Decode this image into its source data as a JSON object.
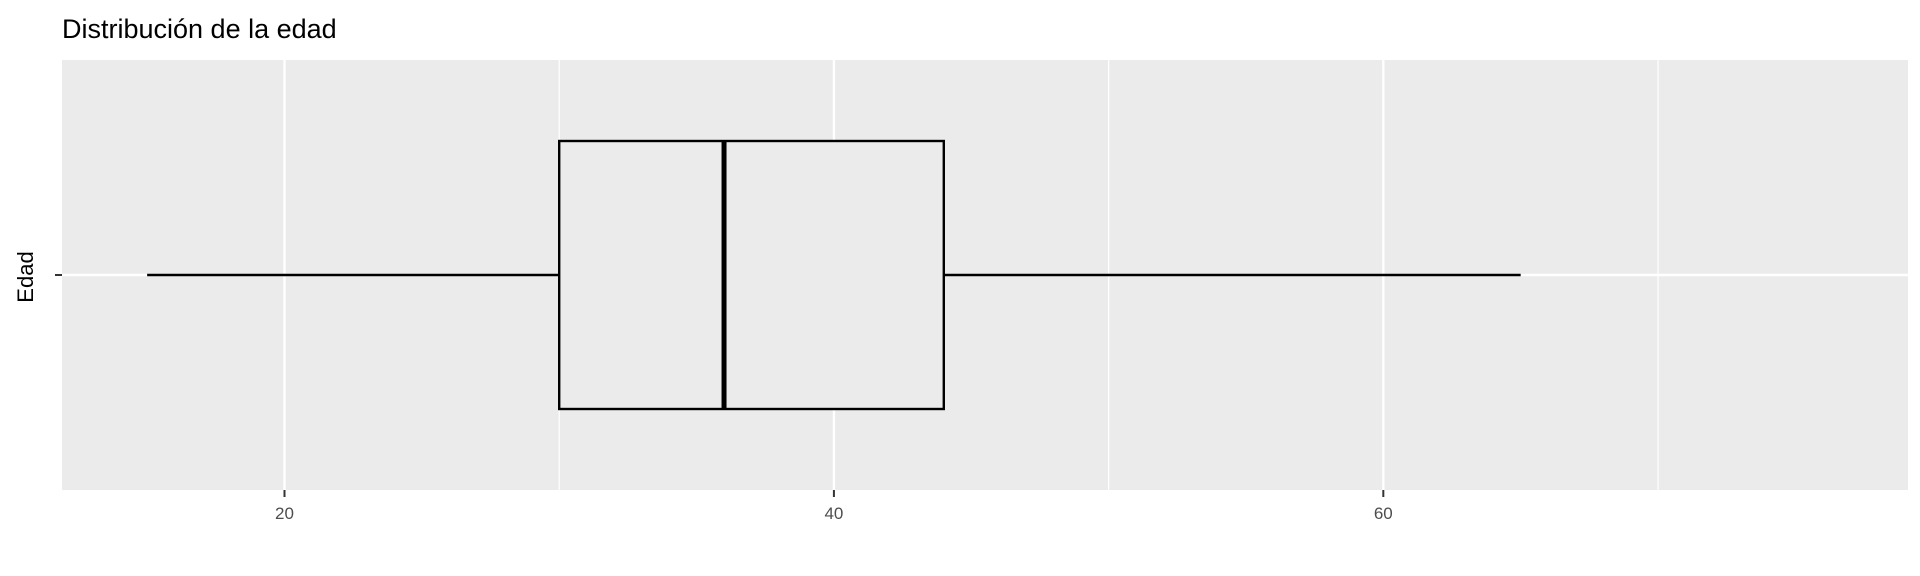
{
  "chart_data": {
    "type": "boxplot",
    "title": "Distribución de la edad",
    "xlabel": "",
    "ylabel": "Edad",
    "xlim": [
      11.9,
      79.1
    ],
    "x_ticks_major": [
      20,
      40,
      60
    ],
    "x_ticks_minor": [
      30,
      50,
      70
    ],
    "box": {
      "whisker_low": 15,
      "q1": 30,
      "median": 36,
      "q3": 44,
      "whisker_high": 65
    },
    "grid": true,
    "legend": "none",
    "colors": {
      "panel": "#ebebeb",
      "grid": "#ffffff",
      "box_line": "#000000",
      "box_fill": "#ebebeb",
      "tick_text": "#4d4d4d"
    }
  }
}
